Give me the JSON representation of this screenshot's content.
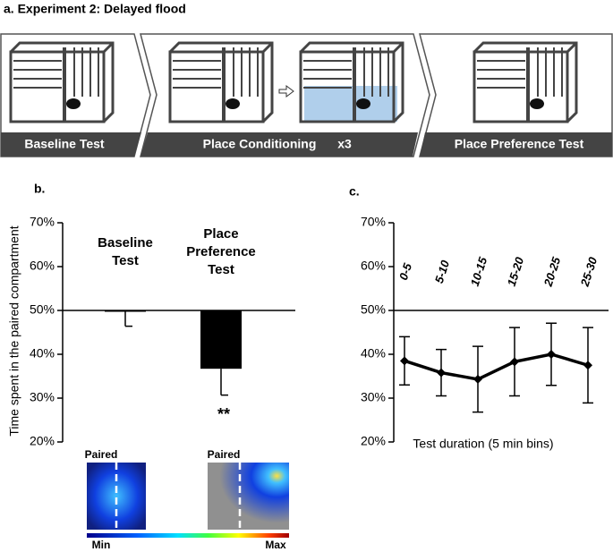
{
  "panel_a": {
    "title": "a. Experiment 2: Delayed flood",
    "stages": [
      "Baseline Test",
      "Place Conditioning",
      "Place Preference Test"
    ],
    "repeat": "x3"
  },
  "chart_data": [
    {
      "type": "bar",
      "panel_label": "b.",
      "y_label": "Time spent in the paired compartment",
      "categories": [
        "Baseline Test",
        "Place Preference Test"
      ],
      "values": [
        49.8,
        36.7
      ],
      "errors": [
        3.4,
        6.0
      ],
      "baseline": 50,
      "color": "#000000",
      "annotation": "**",
      "ylim": [
        20,
        70
      ],
      "yticks": [
        {
          "value": 20,
          "label": "20%"
        },
        {
          "value": 30,
          "label": "30%"
        },
        {
          "value": 40,
          "label": "40%"
        },
        {
          "value": 50,
          "label": "50%"
        },
        {
          "value": 60,
          "label": "60%"
        },
        {
          "value": 70,
          "label": "70%"
        }
      ],
      "heatmap_labels": [
        "Paired",
        "Paired"
      ],
      "scale_labels": [
        "Min",
        "Max"
      ]
    },
    {
      "type": "line",
      "panel_label": "c.",
      "x_label": "Test duration (5 min bins)",
      "categories": [
        "0-5",
        "5-10",
        "10-15",
        "15-20",
        "20-25",
        "25-30"
      ],
      "values": [
        38.5,
        35.8,
        34.3,
        38.3,
        40.0,
        37.5
      ],
      "errors": [
        5.5,
        5.3,
        7.5,
        7.8,
        7.1,
        8.6
      ],
      "baseline": 50,
      "color": "#000000",
      "ylim": [
        20,
        70
      ],
      "yticks": [
        {
          "value": 20,
          "label": "20%"
        },
        {
          "value": 30,
          "label": "30%"
        },
        {
          "value": 40,
          "label": "40%"
        },
        {
          "value": 50,
          "label": "50%"
        },
        {
          "value": 60,
          "label": "60%"
        },
        {
          "value": 70,
          "label": "70%"
        }
      ]
    }
  ]
}
